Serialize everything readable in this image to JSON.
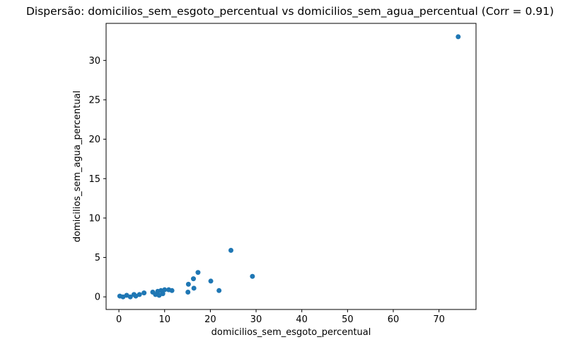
{
  "chart_data": {
    "type": "scatter",
    "title": "Dispersão: domicilios_sem_esgoto_percentual vs domicilios_sem_agua_percentual (Corr = 0.91)",
    "xlabel": "domicilios_sem_esgoto_percentual",
    "ylabel": "domicilios_sem_agua_percentual",
    "correlation": 0.91,
    "xlim": [
      -2.8,
      78.1
    ],
    "ylim": [
      -1.6,
      34.7
    ],
    "xticks": [
      0,
      10,
      20,
      30,
      40,
      50,
      60,
      70
    ],
    "yticks": [
      0,
      5,
      10,
      15,
      20,
      25,
      30
    ],
    "legend": "none",
    "grid": false,
    "marker_color": "#1f77b4",
    "axis_color": "#000000",
    "points": [
      [
        0.2,
        0.1
      ],
      [
        0.9,
        0.0
      ],
      [
        1.7,
        0.2
      ],
      [
        2.5,
        0.0
      ],
      [
        3.3,
        0.3
      ],
      [
        3.7,
        0.1
      ],
      [
        4.5,
        0.3
      ],
      [
        5.5,
        0.5
      ],
      [
        7.4,
        0.6
      ],
      [
        8.0,
        0.3
      ],
      [
        8.5,
        0.7
      ],
      [
        8.8,
        0.2
      ],
      [
        9.2,
        0.8
      ],
      [
        9.6,
        0.4
      ],
      [
        10.0,
        0.9
      ],
      [
        10.9,
        0.9
      ],
      [
        11.6,
        0.8
      ],
      [
        15.1,
        0.6
      ],
      [
        15.2,
        1.6
      ],
      [
        16.3,
        2.3
      ],
      [
        16.4,
        1.1
      ],
      [
        17.3,
        3.1
      ],
      [
        20.1,
        2.0
      ],
      [
        21.9,
        0.8
      ],
      [
        24.5,
        5.9
      ],
      [
        29.2,
        2.6
      ],
      [
        74.2,
        33.0
      ]
    ]
  }
}
